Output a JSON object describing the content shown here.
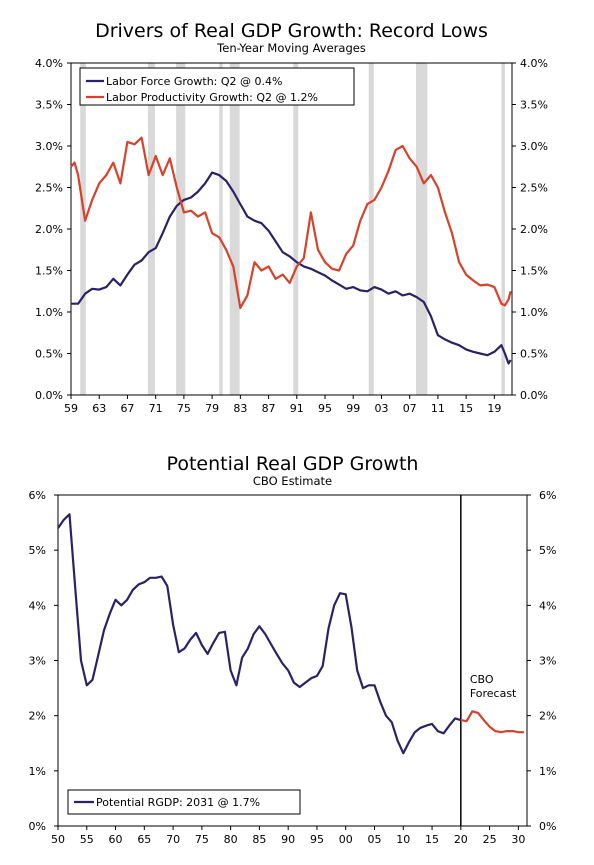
{
  "colors": {
    "labor_force": "#2b2266",
    "productivity": "#d8412a",
    "potential": "#2b2266",
    "forecast": "#d8412a",
    "recession": "#d9d9d9",
    "axis": "#000000"
  },
  "chart_data": [
    {
      "type": "line",
      "title": "Drivers of Real GDP Growth: Record Lows",
      "subtitle": "Ten-Year Moving Averages",
      "xlabel": "",
      "ylabel": "",
      "xlim": [
        1959,
        2021.5
      ],
      "ylim": [
        0,
        4
      ],
      "x_tick_labels": [
        "59",
        "63",
        "67",
        "71",
        "75",
        "79",
        "83",
        "87",
        "91",
        "95",
        "99",
        "03",
        "07",
        "11",
        "15",
        "19"
      ],
      "y_tick_labels": [
        "0.0%",
        "0.5%",
        "1.0%",
        "1.5%",
        "2.0%",
        "2.5%",
        "3.0%",
        "3.5%",
        "4.0%"
      ],
      "y_ticks": [
        0,
        0.5,
        1,
        1.5,
        2,
        2.5,
        3,
        3.5,
        4
      ],
      "legend_position": "top-left",
      "grid": false,
      "recessions": [
        [
          1960.3,
          1961.1
        ],
        [
          1969.9,
          1970.9
        ],
        [
          1973.9,
          1975.2
        ],
        [
          1980.0,
          1980.5
        ],
        [
          1981.5,
          1982.9
        ],
        [
          1990.5,
          1991.2
        ],
        [
          2001.2,
          2001.9
        ],
        [
          2007.9,
          2009.5
        ],
        [
          2020.0,
          2020.5
        ]
      ],
      "series": [
        {
          "name": "Labor Force Growth: Q2 @ 0.4%",
          "points": [
            [
              1959,
              1.1
            ],
            [
              1960,
              1.1
            ],
            [
              1961,
              1.22
            ],
            [
              1962,
              1.28
            ],
            [
              1963,
              1.27
            ],
            [
              1964,
              1.3
            ],
            [
              1965,
              1.4
            ],
            [
              1966,
              1.32
            ],
            [
              1967,
              1.45
            ],
            [
              1968,
              1.57
            ],
            [
              1969,
              1.62
            ],
            [
              1970,
              1.72
            ],
            [
              1971,
              1.77
            ],
            [
              1972,
              1.95
            ],
            [
              1973,
              2.15
            ],
            [
              1974,
              2.28
            ],
            [
              1975,
              2.35
            ],
            [
              1976,
              2.38
            ],
            [
              1977,
              2.45
            ],
            [
              1978,
              2.55
            ],
            [
              1979,
              2.68
            ],
            [
              1980,
              2.65
            ],
            [
              1981,
              2.58
            ],
            [
              1982,
              2.45
            ],
            [
              1983,
              2.3
            ],
            [
              1984,
              2.15
            ],
            [
              1985,
              2.1
            ],
            [
              1986,
              2.07
            ],
            [
              1987,
              1.98
            ],
            [
              1988,
              1.85
            ],
            [
              1989,
              1.72
            ],
            [
              1990,
              1.67
            ],
            [
              1991,
              1.6
            ],
            [
              1992,
              1.55
            ],
            [
              1993,
              1.52
            ],
            [
              1994,
              1.48
            ],
            [
              1995,
              1.44
            ],
            [
              1996,
              1.38
            ],
            [
              1997,
              1.33
            ],
            [
              1998,
              1.28
            ],
            [
              1999,
              1.3
            ],
            [
              2000,
              1.26
            ],
            [
              2001,
              1.25
            ],
            [
              2002,
              1.3
            ],
            [
              2003,
              1.27
            ],
            [
              2004,
              1.22
            ],
            [
              2005,
              1.25
            ],
            [
              2006,
              1.2
            ],
            [
              2007,
              1.22
            ],
            [
              2008,
              1.18
            ],
            [
              2009,
              1.12
            ],
            [
              2010,
              0.95
            ],
            [
              2011,
              0.72
            ],
            [
              2012,
              0.67
            ],
            [
              2013,
              0.63
            ],
            [
              2014,
              0.6
            ],
            [
              2015,
              0.55
            ],
            [
              2016,
              0.52
            ],
            [
              2017,
              0.5
            ],
            [
              2018,
              0.48
            ],
            [
              2019,
              0.52
            ],
            [
              2020,
              0.6
            ],
            [
              2020.5,
              0.5
            ],
            [
              2021,
              0.38
            ],
            [
              2021.3,
              0.42
            ]
          ]
        },
        {
          "name": "Labor Productivity Growth: Q2 @ 1.2%",
          "points": [
            [
              1959,
              2.75
            ],
            [
              1959.5,
              2.8
            ],
            [
              1960,
              2.65
            ],
            [
              1961,
              2.1
            ],
            [
              1962,
              2.35
            ],
            [
              1963,
              2.55
            ],
            [
              1964,
              2.65
            ],
            [
              1965,
              2.8
            ],
            [
              1966,
              2.55
            ],
            [
              1967,
              3.05
            ],
            [
              1968,
              3.02
            ],
            [
              1969,
              3.1
            ],
            [
              1970,
              2.65
            ],
            [
              1971,
              2.88
            ],
            [
              1972,
              2.65
            ],
            [
              1973,
              2.85
            ],
            [
              1974,
              2.5
            ],
            [
              1975,
              2.2
            ],
            [
              1976,
              2.22
            ],
            [
              1977,
              2.15
            ],
            [
              1978,
              2.2
            ],
            [
              1979,
              1.95
            ],
            [
              1980,
              1.9
            ],
            [
              1981,
              1.75
            ],
            [
              1982,
              1.55
            ],
            [
              1983,
              1.05
            ],
            [
              1984,
              1.2
            ],
            [
              1985,
              1.6
            ],
            [
              1986,
              1.5
            ],
            [
              1987,
              1.55
            ],
            [
              1988,
              1.4
            ],
            [
              1989,
              1.45
            ],
            [
              1990,
              1.35
            ],
            [
              1991,
              1.55
            ],
            [
              1992,
              1.65
            ],
            [
              1993,
              2.2
            ],
            [
              1994,
              1.75
            ],
            [
              1995,
              1.6
            ],
            [
              1996,
              1.52
            ],
            [
              1997,
              1.5
            ],
            [
              1998,
              1.7
            ],
            [
              1999,
              1.8
            ],
            [
              2000,
              2.1
            ],
            [
              2001,
              2.3
            ],
            [
              2002,
              2.35
            ],
            [
              2003,
              2.5
            ],
            [
              2004,
              2.7
            ],
            [
              2005,
              2.95
            ],
            [
              2006,
              3.0
            ],
            [
              2007,
              2.85
            ],
            [
              2008,
              2.75
            ],
            [
              2009,
              2.55
            ],
            [
              2010,
              2.65
            ],
            [
              2011,
              2.5
            ],
            [
              2012,
              2.2
            ],
            [
              2013,
              1.95
            ],
            [
              2014,
              1.6
            ],
            [
              2015,
              1.45
            ],
            [
              2016,
              1.38
            ],
            [
              2017,
              1.32
            ],
            [
              2018,
              1.33
            ],
            [
              2019,
              1.3
            ],
            [
              2020,
              1.1
            ],
            [
              2020.5,
              1.08
            ],
            [
              2021,
              1.15
            ],
            [
              2021.3,
              1.25
            ]
          ]
        }
      ]
    },
    {
      "type": "line",
      "title": "Potential Real GDP Growth",
      "subtitle": "CBO Estimate",
      "xlabel": "",
      "ylabel": "",
      "xlim": [
        1950,
        2031.5
      ],
      "ylim": [
        0,
        6
      ],
      "x_tick_labels": [
        "50",
        "55",
        "60",
        "65",
        "70",
        "75",
        "80",
        "85",
        "90",
        "95",
        "00",
        "05",
        "10",
        "15",
        "20",
        "25",
        "30"
      ],
      "y_tick_labels": [
        "0%",
        "1%",
        "2%",
        "3%",
        "4%",
        "5%",
        "6%"
      ],
      "y_ticks": [
        0,
        1,
        2,
        3,
        4,
        5,
        6
      ],
      "forecast_divider_x": 2020,
      "annotation": "CBO\nForecast",
      "legend_position": "bottom-left",
      "grid": false,
      "series": [
        {
          "name": "Potential RGDP: 2031 @ 1.7%",
          "points": [
            [
              1950,
              5.4
            ],
            [
              1951,
              5.55
            ],
            [
              1952,
              5.65
            ],
            [
              1953,
              4.3
            ],
            [
              1954,
              3.0
            ],
            [
              1955,
              2.55
            ],
            [
              1956,
              2.65
            ],
            [
              1957,
              3.1
            ],
            [
              1958,
              3.55
            ],
            [
              1959,
              3.85
            ],
            [
              1960,
              4.1
            ],
            [
              1961,
              4.0
            ],
            [
              1962,
              4.1
            ],
            [
              1963,
              4.28
            ],
            [
              1964,
              4.38
            ],
            [
              1965,
              4.42
            ],
            [
              1966,
              4.5
            ],
            [
              1967,
              4.5
            ],
            [
              1968,
              4.52
            ],
            [
              1969,
              4.35
            ],
            [
              1970,
              3.65
            ],
            [
              1971,
              3.15
            ],
            [
              1972,
              3.22
            ],
            [
              1973,
              3.38
            ],
            [
              1974,
              3.5
            ],
            [
              1975,
              3.28
            ],
            [
              1976,
              3.12
            ],
            [
              1977,
              3.32
            ],
            [
              1978,
              3.5
            ],
            [
              1979,
              3.52
            ],
            [
              1980,
              2.82
            ],
            [
              1981,
              2.55
            ],
            [
              1982,
              3.05
            ],
            [
              1983,
              3.22
            ],
            [
              1984,
              3.48
            ],
            [
              1985,
              3.62
            ],
            [
              1986,
              3.48
            ],
            [
              1987,
              3.3
            ],
            [
              1988,
              3.12
            ],
            [
              1989,
              2.95
            ],
            [
              1990,
              2.82
            ],
            [
              1991,
              2.6
            ],
            [
              1992,
              2.52
            ],
            [
              1993,
              2.6
            ],
            [
              1994,
              2.68
            ],
            [
              1995,
              2.72
            ],
            [
              1996,
              2.9
            ],
            [
              1997,
              3.58
            ],
            [
              1998,
              4.0
            ],
            [
              1999,
              4.22
            ],
            [
              2000,
              4.2
            ],
            [
              2001,
              3.6
            ],
            [
              2002,
              2.82
            ],
            [
              2003,
              2.5
            ],
            [
              2004,
              2.55
            ],
            [
              2005,
              2.55
            ],
            [
              2006,
              2.25
            ],
            [
              2007,
              2.0
            ],
            [
              2008,
              1.88
            ],
            [
              2009,
              1.55
            ],
            [
              2010,
              1.32
            ],
            [
              2011,
              1.52
            ],
            [
              2012,
              1.7
            ],
            [
              2013,
              1.78
            ],
            [
              2014,
              1.82
            ],
            [
              2015,
              1.85
            ],
            [
              2016,
              1.72
            ],
            [
              2017,
              1.68
            ],
            [
              2018,
              1.82
            ],
            [
              2019,
              1.95
            ],
            [
              2020,
              1.92
            ]
          ]
        },
        {
          "name": "CBO forecast",
          "points": [
            [
              2020,
              1.92
            ],
            [
              2021,
              1.9
            ],
            [
              2022,
              2.08
            ],
            [
              2023,
              2.05
            ],
            [
              2024,
              1.92
            ],
            [
              2025,
              1.8
            ],
            [
              2026,
              1.72
            ],
            [
              2027,
              1.7
            ],
            [
              2028,
              1.72
            ],
            [
              2029,
              1.72
            ],
            [
              2030,
              1.7
            ],
            [
              2031,
              1.7
            ]
          ]
        }
      ]
    }
  ]
}
